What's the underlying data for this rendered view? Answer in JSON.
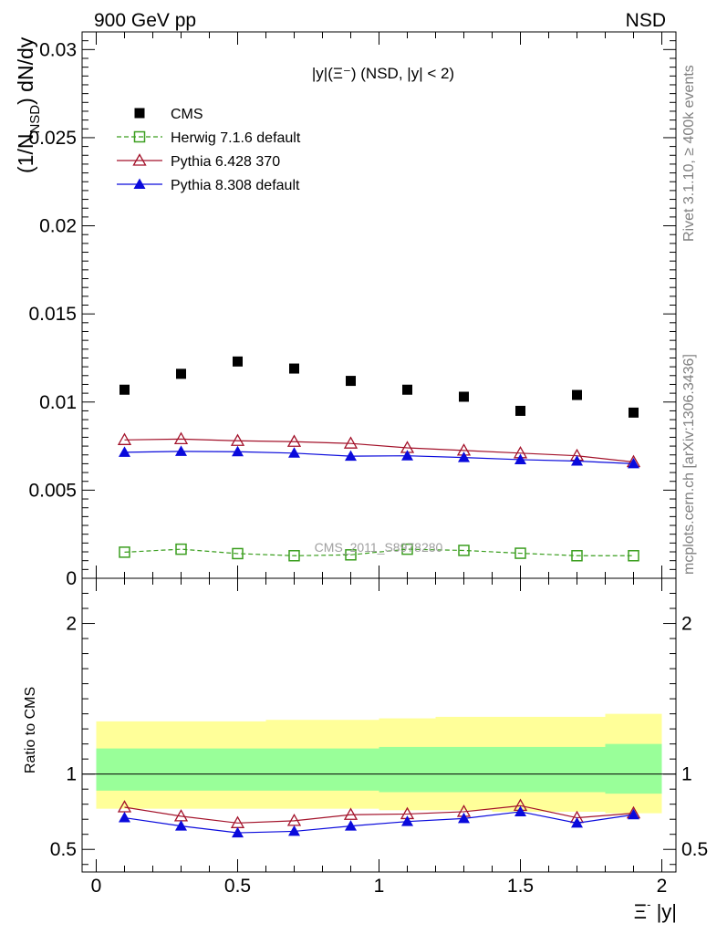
{
  "header": {
    "left": "900 GeV pp",
    "right": "NSD"
  },
  "side_text": {
    "top": "Rivet 3.1.10, ≥ 400k events",
    "bottom": "mcplots.cern.ch [arXiv:1306.3436]"
  },
  "watermark": "CMS_2011_S8978280",
  "colors": {
    "cms": "#000000",
    "herwig": "#3a9e1e",
    "pythia6": "#a3122a",
    "pythia8": "#0a0adc",
    "band_yellow": "#ffff99",
    "band_green": "#99ff99"
  },
  "chart_data": [
    {
      "type": "scatter",
      "title": "|y|(Ξ⁻) (NSD, |y| < 2)",
      "ylabel": "(1/N_NSD) dN/dy",
      "ylabel_parts": {
        "a": "(1/N",
        "b": "NSD",
        "c": ") dN/dy"
      },
      "xlim": [
        -0.05,
        2.05
      ],
      "ylim": [
        0,
        0.031
      ],
      "yticks": [
        0,
        0.005,
        0.01,
        0.015,
        0.02,
        0.025,
        0.03
      ],
      "ytick_labels": [
        "0",
        "0.005",
        "0.01",
        "0.015",
        "0.02",
        "0.025",
        "0.03"
      ],
      "x": [
        0.1,
        0.3,
        0.5,
        0.7,
        0.9,
        1.1,
        1.3,
        1.5,
        1.7,
        1.9
      ],
      "legend": "top-left",
      "series": [
        {
          "name": "CMS",
          "marker": "square-filled",
          "values": [
            0.0107,
            0.0116,
            0.0123,
            0.0119,
            0.0112,
            0.0107,
            0.0103,
            0.0095,
            0.0104,
            0.0094
          ]
        },
        {
          "name": "Herwig 7.1.6 default",
          "marker": "square-open",
          "line": "dashed",
          "values": [
            0.00148,
            0.00165,
            0.0014,
            0.00128,
            0.00133,
            0.00165,
            0.00158,
            0.00142,
            0.00128,
            0.00128
          ]
        },
        {
          "name": "Pythia 6.428 370",
          "marker": "triangle-open",
          "line": "solid",
          "values": [
            0.00785,
            0.0079,
            0.0078,
            0.00775,
            0.00765,
            0.0074,
            0.00725,
            0.0071,
            0.00695,
            0.0066
          ]
        },
        {
          "name": "Pythia 8.308 default",
          "marker": "triangle-filled",
          "line": "solid",
          "values": [
            0.00715,
            0.0072,
            0.00718,
            0.0071,
            0.00693,
            0.00695,
            0.00685,
            0.00673,
            0.00665,
            0.0065
          ]
        }
      ]
    },
    {
      "type": "line",
      "ylabel": "Ratio to CMS",
      "xlabel": "Ξ⁻ |y|",
      "xlabel_parts": {
        "a": "Ξ",
        "b": "-",
        "c": " |y|"
      },
      "xlim": [
        -0.05,
        2.05
      ],
      "ylim": [
        0.35,
        2.3
      ],
      "xticks": [
        0,
        0.5,
        1,
        1.5,
        2
      ],
      "xtick_labels": [
        "0",
        "0.5",
        "1",
        "1.5",
        "2"
      ],
      "yticks": [
        0.5,
        1,
        2
      ],
      "ytick_labels": [
        "0.5",
        "1",
        "2"
      ],
      "x": [
        0.1,
        0.3,
        0.5,
        0.7,
        0.9,
        1.1,
        1.3,
        1.5,
        1.7,
        1.9
      ],
      "bands": {
        "bins": [
          0,
          0.2,
          0.4,
          0.6,
          0.8,
          1.0,
          1.2,
          1.4,
          1.6,
          1.8,
          2.0
        ],
        "yellow": [
          [
            0.77,
            1.35
          ],
          [
            0.77,
            1.35
          ],
          [
            0.77,
            1.35
          ],
          [
            0.77,
            1.36
          ],
          [
            0.77,
            1.36
          ],
          [
            0.76,
            1.37
          ],
          [
            0.76,
            1.38
          ],
          [
            0.75,
            1.38
          ],
          [
            0.75,
            1.38
          ],
          [
            0.74,
            1.4
          ]
        ],
        "green": [
          [
            0.89,
            1.17
          ],
          [
            0.89,
            1.17
          ],
          [
            0.89,
            1.17
          ],
          [
            0.89,
            1.17
          ],
          [
            0.89,
            1.17
          ],
          [
            0.88,
            1.18
          ],
          [
            0.88,
            1.18
          ],
          [
            0.88,
            1.18
          ],
          [
            0.88,
            1.18
          ],
          [
            0.87,
            1.2
          ]
        ]
      },
      "series": [
        {
          "name": "Pythia 6.428 370",
          "values": [
            0.78,
            0.72,
            0.675,
            0.69,
            0.73,
            0.735,
            0.75,
            0.79,
            0.71,
            0.74
          ]
        },
        {
          "name": "Pythia 8.308 default",
          "values": [
            0.71,
            0.655,
            0.61,
            0.62,
            0.655,
            0.685,
            0.705,
            0.75,
            0.675,
            0.73
          ]
        }
      ]
    }
  ]
}
